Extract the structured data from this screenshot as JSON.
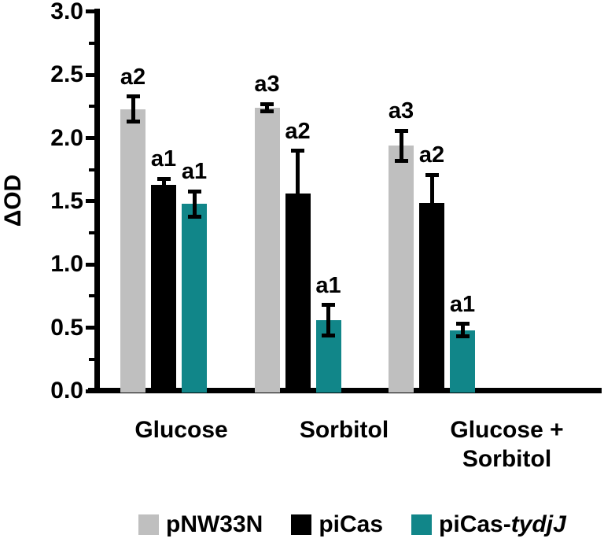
{
  "chart_data": {
    "type": "bar",
    "title": "",
    "xlabel": "",
    "ylabel": "ΔOD",
    "ylim": [
      0.0,
      3.0
    ],
    "ytick_major_step": 0.5,
    "ytick_minor_step": 0.25,
    "ytick_labels": [
      "0.0",
      "0.5",
      "1.0",
      "1.5",
      "2.0",
      "2.5",
      "3.0"
    ],
    "grid": "off",
    "legend_position": "bottom",
    "categories": [
      "Glucose",
      "Sorbitol",
      "Glucose + Sorbitol"
    ],
    "category_label_lines": [
      [
        "Glucose"
      ],
      [
        "Sorbitol"
      ],
      [
        "Glucose +",
        "Sorbitol"
      ]
    ],
    "series": [
      {
        "name": "pNW33N",
        "color": "#bfbfbf",
        "pattern": "dots",
        "values": [
          2.23,
          2.24,
          1.94
        ],
        "errors": [
          0.1,
          0.03,
          0.12
        ],
        "sig_labels": [
          "a2",
          "a3",
          "a3"
        ]
      },
      {
        "name": "piCas",
        "color": "#000000",
        "pattern": "solid",
        "values": [
          1.63,
          1.56,
          1.49
        ],
        "errors": [
          0.05,
          0.34,
          0.22
        ],
        "sig_labels": [
          "a1",
          "a2",
          "a2"
        ]
      },
      {
        "name": "piCas-tydjJ",
        "color": "#118689",
        "pattern": "hatch",
        "values": [
          1.48,
          0.56,
          0.48
        ],
        "errors": [
          0.1,
          0.12,
          0.05
        ],
        "sig_labels": [
          "a1",
          "a1",
          "a1"
        ]
      }
    ],
    "legend": [
      {
        "swatch_color": "#bfbfbf",
        "parts": [
          {
            "text": "pNW33N",
            "italic": false
          }
        ]
      },
      {
        "swatch_color": "#000000",
        "parts": [
          {
            "text": "piCas",
            "italic": false
          }
        ]
      },
      {
        "swatch_color": "#118689",
        "parts": [
          {
            "text": "piCas-",
            "italic": false
          },
          {
            "text": "tydjJ",
            "italic": true
          }
        ]
      }
    ]
  }
}
